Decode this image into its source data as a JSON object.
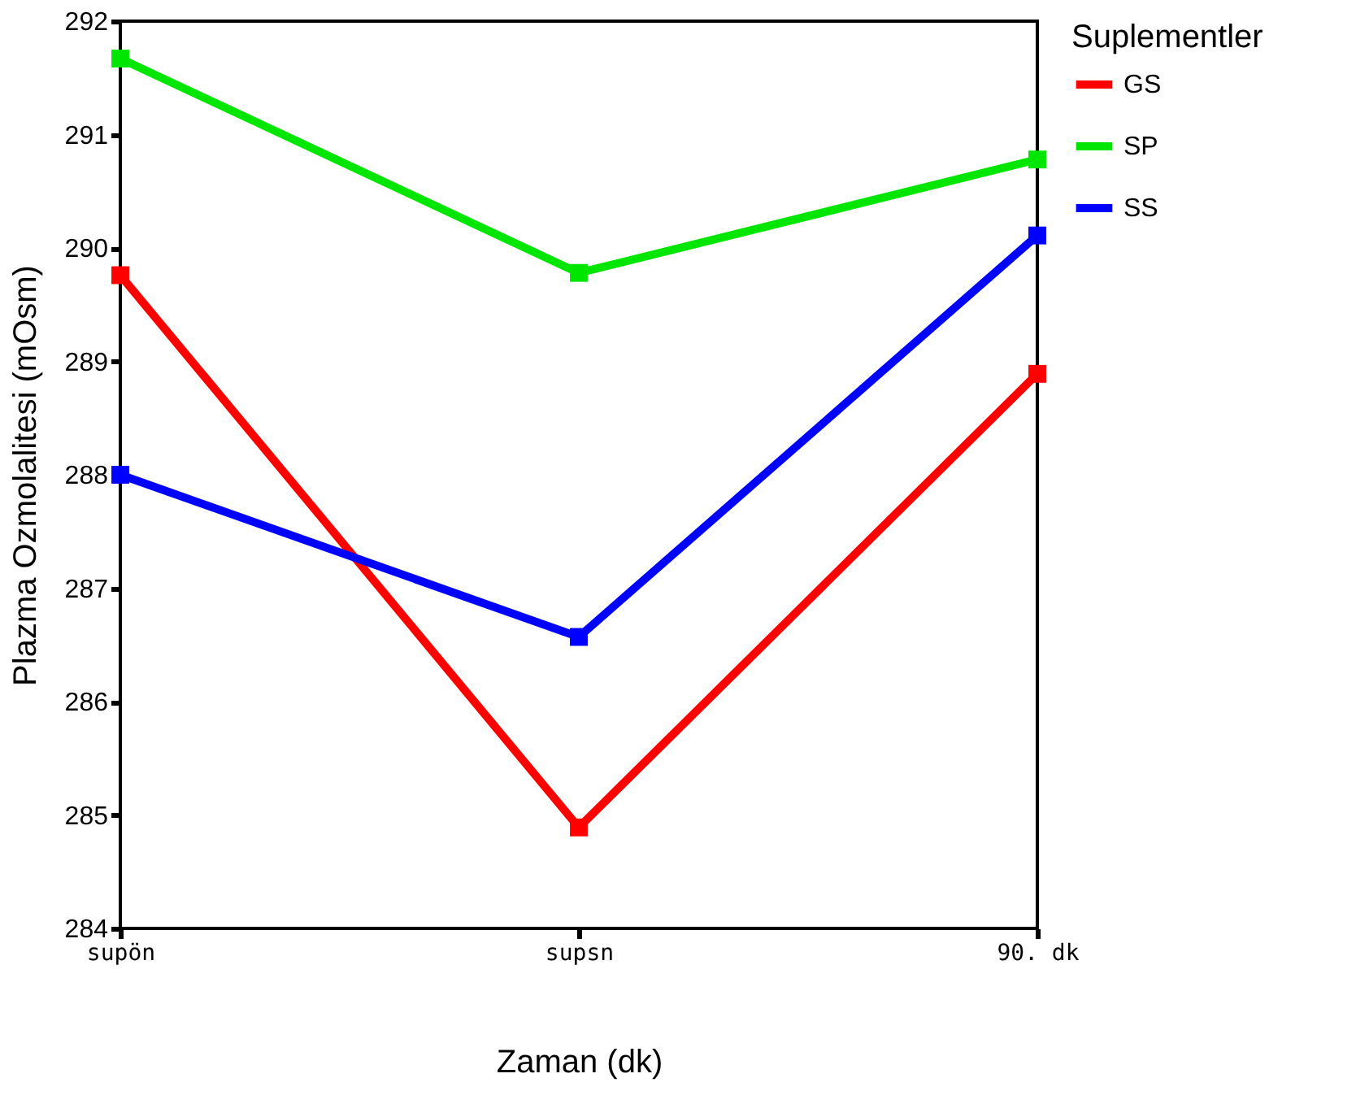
{
  "chart_data": {
    "type": "line",
    "xlabel": "Zaman (dk)",
    "ylabel": "Plazma Ozmolalitesi (mOsm)",
    "legend_title": "Suplementler",
    "categories": [
      "supön",
      "supsn",
      "90. dk"
    ],
    "series": [
      {
        "name": "GS",
        "color": "#ff0000",
        "values": [
          289.76,
          284.89,
          288.89
        ]
      },
      {
        "name": "SP",
        "color": "#00e600",
        "values": [
          291.67,
          289.78,
          290.78
        ]
      },
      {
        "name": "SS",
        "color": "#0000ff",
        "values": [
          288.0,
          286.57,
          290.11
        ]
      }
    ],
    "ylim": [
      284,
      292
    ],
    "yticks": [
      284,
      285,
      286,
      287,
      288,
      289,
      290,
      291,
      292
    ],
    "marker": "square",
    "line_style": "solid",
    "legend": "right",
    "grid": false
  }
}
